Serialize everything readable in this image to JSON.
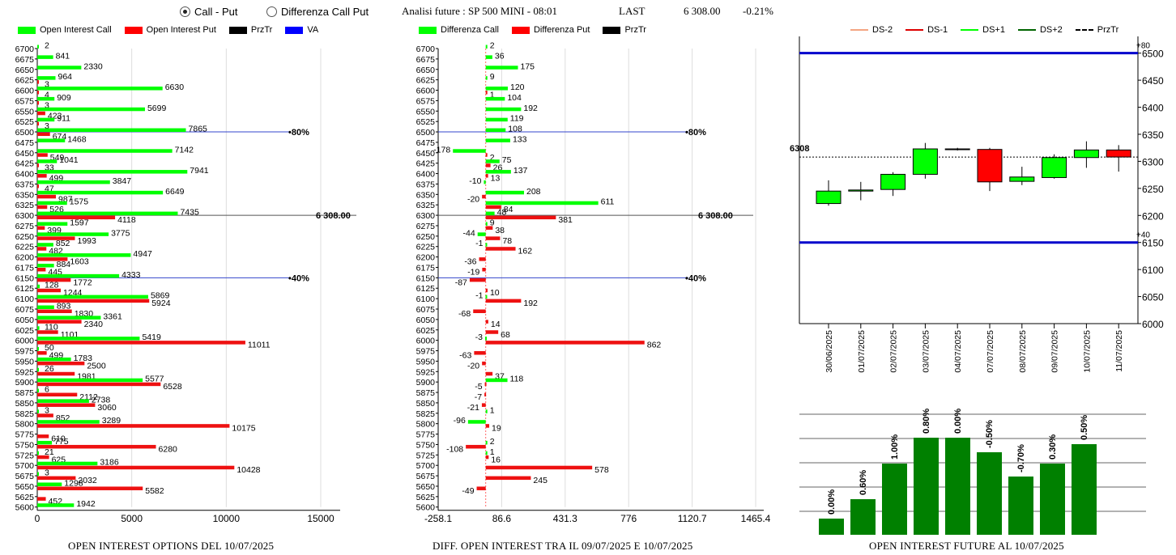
{
  "header": {
    "radio_call_put": "Call - Put",
    "radio_diff": "Differenza Call Put",
    "selected": "Call - Put",
    "title": "Analisi future : SP 500 MINI - 08:01",
    "last_label": "LAST",
    "last_value": "6 308.00",
    "last_change": "-0.21%"
  },
  "legend1": [
    {
      "label": "Open Interest Call",
      "color": "#00ff00"
    },
    {
      "label": "Open Interest Put",
      "color": "#ff0000"
    },
    {
      "label": "PrzTr",
      "color": "#000000"
    },
    {
      "label": "VA",
      "color": "#0000ff"
    }
  ],
  "legend2": [
    {
      "label": "Differenza Call",
      "color": "#00ff00"
    },
    {
      "label": "Differenza Put",
      "color": "#ff0000"
    },
    {
      "label": "PrzTr",
      "color": "#000000"
    }
  ],
  "legend3": [
    {
      "label": "DS-2",
      "color": "#f4a582"
    },
    {
      "label": "DS-1",
      "color": "#dd0000"
    },
    {
      "label": "DS+1",
      "color": "#00ff00"
    },
    {
      "label": "DS+2",
      "color": "#006400"
    },
    {
      "label": "PrzTr",
      "color": "#000000"
    }
  ],
  "titles": {
    "left": "OPEN INTEREST OPTIONS DEL 10/07/2025",
    "mid": "DIFF. OPEN INTEREST TRA IL 09/07/2025 E 10/07/2025",
    "right": "OPEN INTEREST FUTURE AL 10/07/2025"
  },
  "chart_data": [
    {
      "type": "bar",
      "orientation": "horizontal",
      "title": "OPEN INTEREST OPTIONS DEL 10/07/2025",
      "strikes": [
        6700,
        6675,
        6650,
        6625,
        6600,
        6575,
        6550,
        6525,
        6500,
        6475,
        6450,
        6425,
        6400,
        6375,
        6350,
        6325,
        6300,
        6275,
        6250,
        6225,
        6200,
        6175,
        6150,
        6125,
        6100,
        6075,
        6050,
        6025,
        6000,
        5975,
        5950,
        5925,
        5900,
        5875,
        5850,
        5825,
        5800,
        5775,
        5750,
        5725,
        5700,
        5675,
        5650,
        5625,
        5600
      ],
      "series": [
        {
          "name": "Open Interest Call",
          "values": [
            2,
            841,
            2330,
            964,
            6630,
            909,
            5699,
            911,
            7865,
            1468,
            7142,
            1041,
            7941,
            3847,
            6649,
            1575,
            7435,
            1597,
            3775,
            852,
            4947,
            884,
            4333,
            128,
            5869,
            893,
            3361,
            110,
            5419,
            50,
            1783,
            26,
            5577,
            6,
            2738,
            3,
            3289,
            null,
            775,
            21,
            3186,
            3,
            1298,
            null,
            1942
          ]
        },
        {
          "name": "Open Interest Put",
          "values": [
            null,
            null,
            null,
            3,
            4,
            3,
            423,
            3,
            674,
            null,
            549,
            33,
            499,
            47,
            987,
            526,
            4118,
            399,
            1993,
            482,
            1603,
            445,
            1772,
            1244,
            5924,
            1830,
            2340,
            1101,
            11011,
            499,
            2500,
            1981,
            6528,
            2112,
            3060,
            852,
            10175,
            610,
            6280,
            625,
            10428,
            2032,
            5582,
            452,
            null
          ]
        }
      ],
      "xticks": [
        "0",
        "5000",
        "10000",
        "15000"
      ],
      "xlim": [
        0,
        15600
      ],
      "price_line": {
        "value": 6300,
        "label": "6 308.00"
      },
      "va_lines": [
        {
          "strike": 6500,
          "label": "80%"
        },
        {
          "strike": 6150,
          "label": "40%"
        }
      ]
    },
    {
      "type": "bar",
      "orientation": "horizontal",
      "title": "DIFF. OPEN INTEREST TRA IL 09/07/2025 E 10/07/2025",
      "strikes": [
        6700,
        6675,
        6650,
        6625,
        6600,
        6575,
        6550,
        6525,
        6500,
        6475,
        6450,
        6425,
        6400,
        6375,
        6350,
        6325,
        6300,
        6275,
        6250,
        6225,
        6200,
        6175,
        6150,
        6125,
        6100,
        6075,
        6050,
        6025,
        6000,
        5975,
        5950,
        5925,
        5900,
        5875,
        5850,
        5825,
        5800,
        5775,
        5750,
        5725,
        5700,
        5675,
        5650,
        5625,
        5600
      ],
      "series": [
        {
          "name": "Differenza Call",
          "values": [
            2,
            36,
            175,
            9,
            120,
            104,
            192,
            119,
            108,
            133,
            -178,
            75,
            137,
            -10,
            208,
            611,
            48,
            9,
            -44,
            -1,
            null,
            null,
            null,
            null,
            -1,
            null,
            null,
            null,
            -3,
            null,
            null,
            null,
            118,
            null,
            null,
            1,
            -96,
            null,
            2,
            1,
            null,
            null,
            null,
            null,
            null
          ]
        },
        {
          "name": "Differenza Put",
          "values": [
            null,
            null,
            null,
            null,
            1,
            null,
            null,
            null,
            null,
            null,
            2,
            26,
            13,
            null,
            -20,
            84,
            381,
            38,
            78,
            162,
            -36,
            -19,
            -87,
            10,
            192,
            -68,
            14,
            68,
            862,
            -63,
            -20,
            37,
            -5,
            -7,
            -21,
            null,
            19,
            null,
            -108,
            16,
            578,
            245,
            -49,
            null,
            null
          ]
        }
      ],
      "xticks": [
        "-258.1",
        "86.6",
        "431.3",
        "776",
        "1120.7",
        "1465.4"
      ],
      "xlim": [
        -258.1,
        1465.4
      ],
      "price_line": {
        "value": 6300,
        "label": "6 308.00"
      },
      "va_lines": [
        {
          "strike": 6500,
          "label": "80%"
        },
        {
          "strike": 6150,
          "label": "40%"
        }
      ]
    },
    {
      "type": "candlestick",
      "dates": [
        "30/06/2025",
        "01/07/2025",
        "02/07/2025",
        "03/07/2025",
        "04/07/2025",
        "07/07/2025",
        "08/07/2025",
        "09/07/2025",
        "10/07/2025",
        "11/07/2025"
      ],
      "ohlc": [
        [
          6222,
          6265,
          6218,
          6245
        ],
        [
          6245,
          6262,
          6228,
          6247
        ],
        [
          6248,
          6280,
          6236,
          6276
        ],
        [
          6276,
          6334,
          6268,
          6323
        ],
        [
          6323,
          6325,
          6320,
          6323
        ],
        [
          6322,
          6325,
          6245,
          6262
        ],
        [
          6263,
          6290,
          6256,
          6271
        ],
        [
          6270,
          6313,
          6268,
          6307
        ],
        [
          6307,
          6337,
          6288,
          6321
        ],
        [
          6321,
          6330,
          6281,
          6308
        ]
      ],
      "up_color": "#00ff00",
      "down_color": "#ff0000",
      "yticks": [
        6000,
        6050,
        6100,
        6150,
        6200,
        6250,
        6300,
        6350,
        6400,
        6450,
        6500
      ],
      "ylim": [
        6000,
        6510
      ],
      "upper_line": {
        "value": 6500,
        "label": "+80"
      },
      "lower_line": {
        "value": 6150,
        "label": "+40"
      },
      "price_line": {
        "value": 6308,
        "label": "6308"
      }
    },
    {
      "type": "bar",
      "categories": [
        "30/06/2025",
        "01/07/2025",
        "02/07/2025",
        "03/07/2025",
        "04/07/2025",
        "07/07/2025",
        "08/07/2025",
        "09/07/2025",
        "10/07/2025",
        "11/07/2025"
      ],
      "values": [
        1.0,
        2.2,
        4.4,
        6.0,
        6.0,
        5.1,
        3.6,
        4.4,
        5.6,
        null
      ],
      "labels": [
        "0.00%",
        "0.60%",
        "1.00%",
        "0.80%",
        "0.00%",
        "-0.50%",
        "-0.70%",
        "0.30%",
        "0.50%",
        ""
      ],
      "grid": true
    }
  ]
}
